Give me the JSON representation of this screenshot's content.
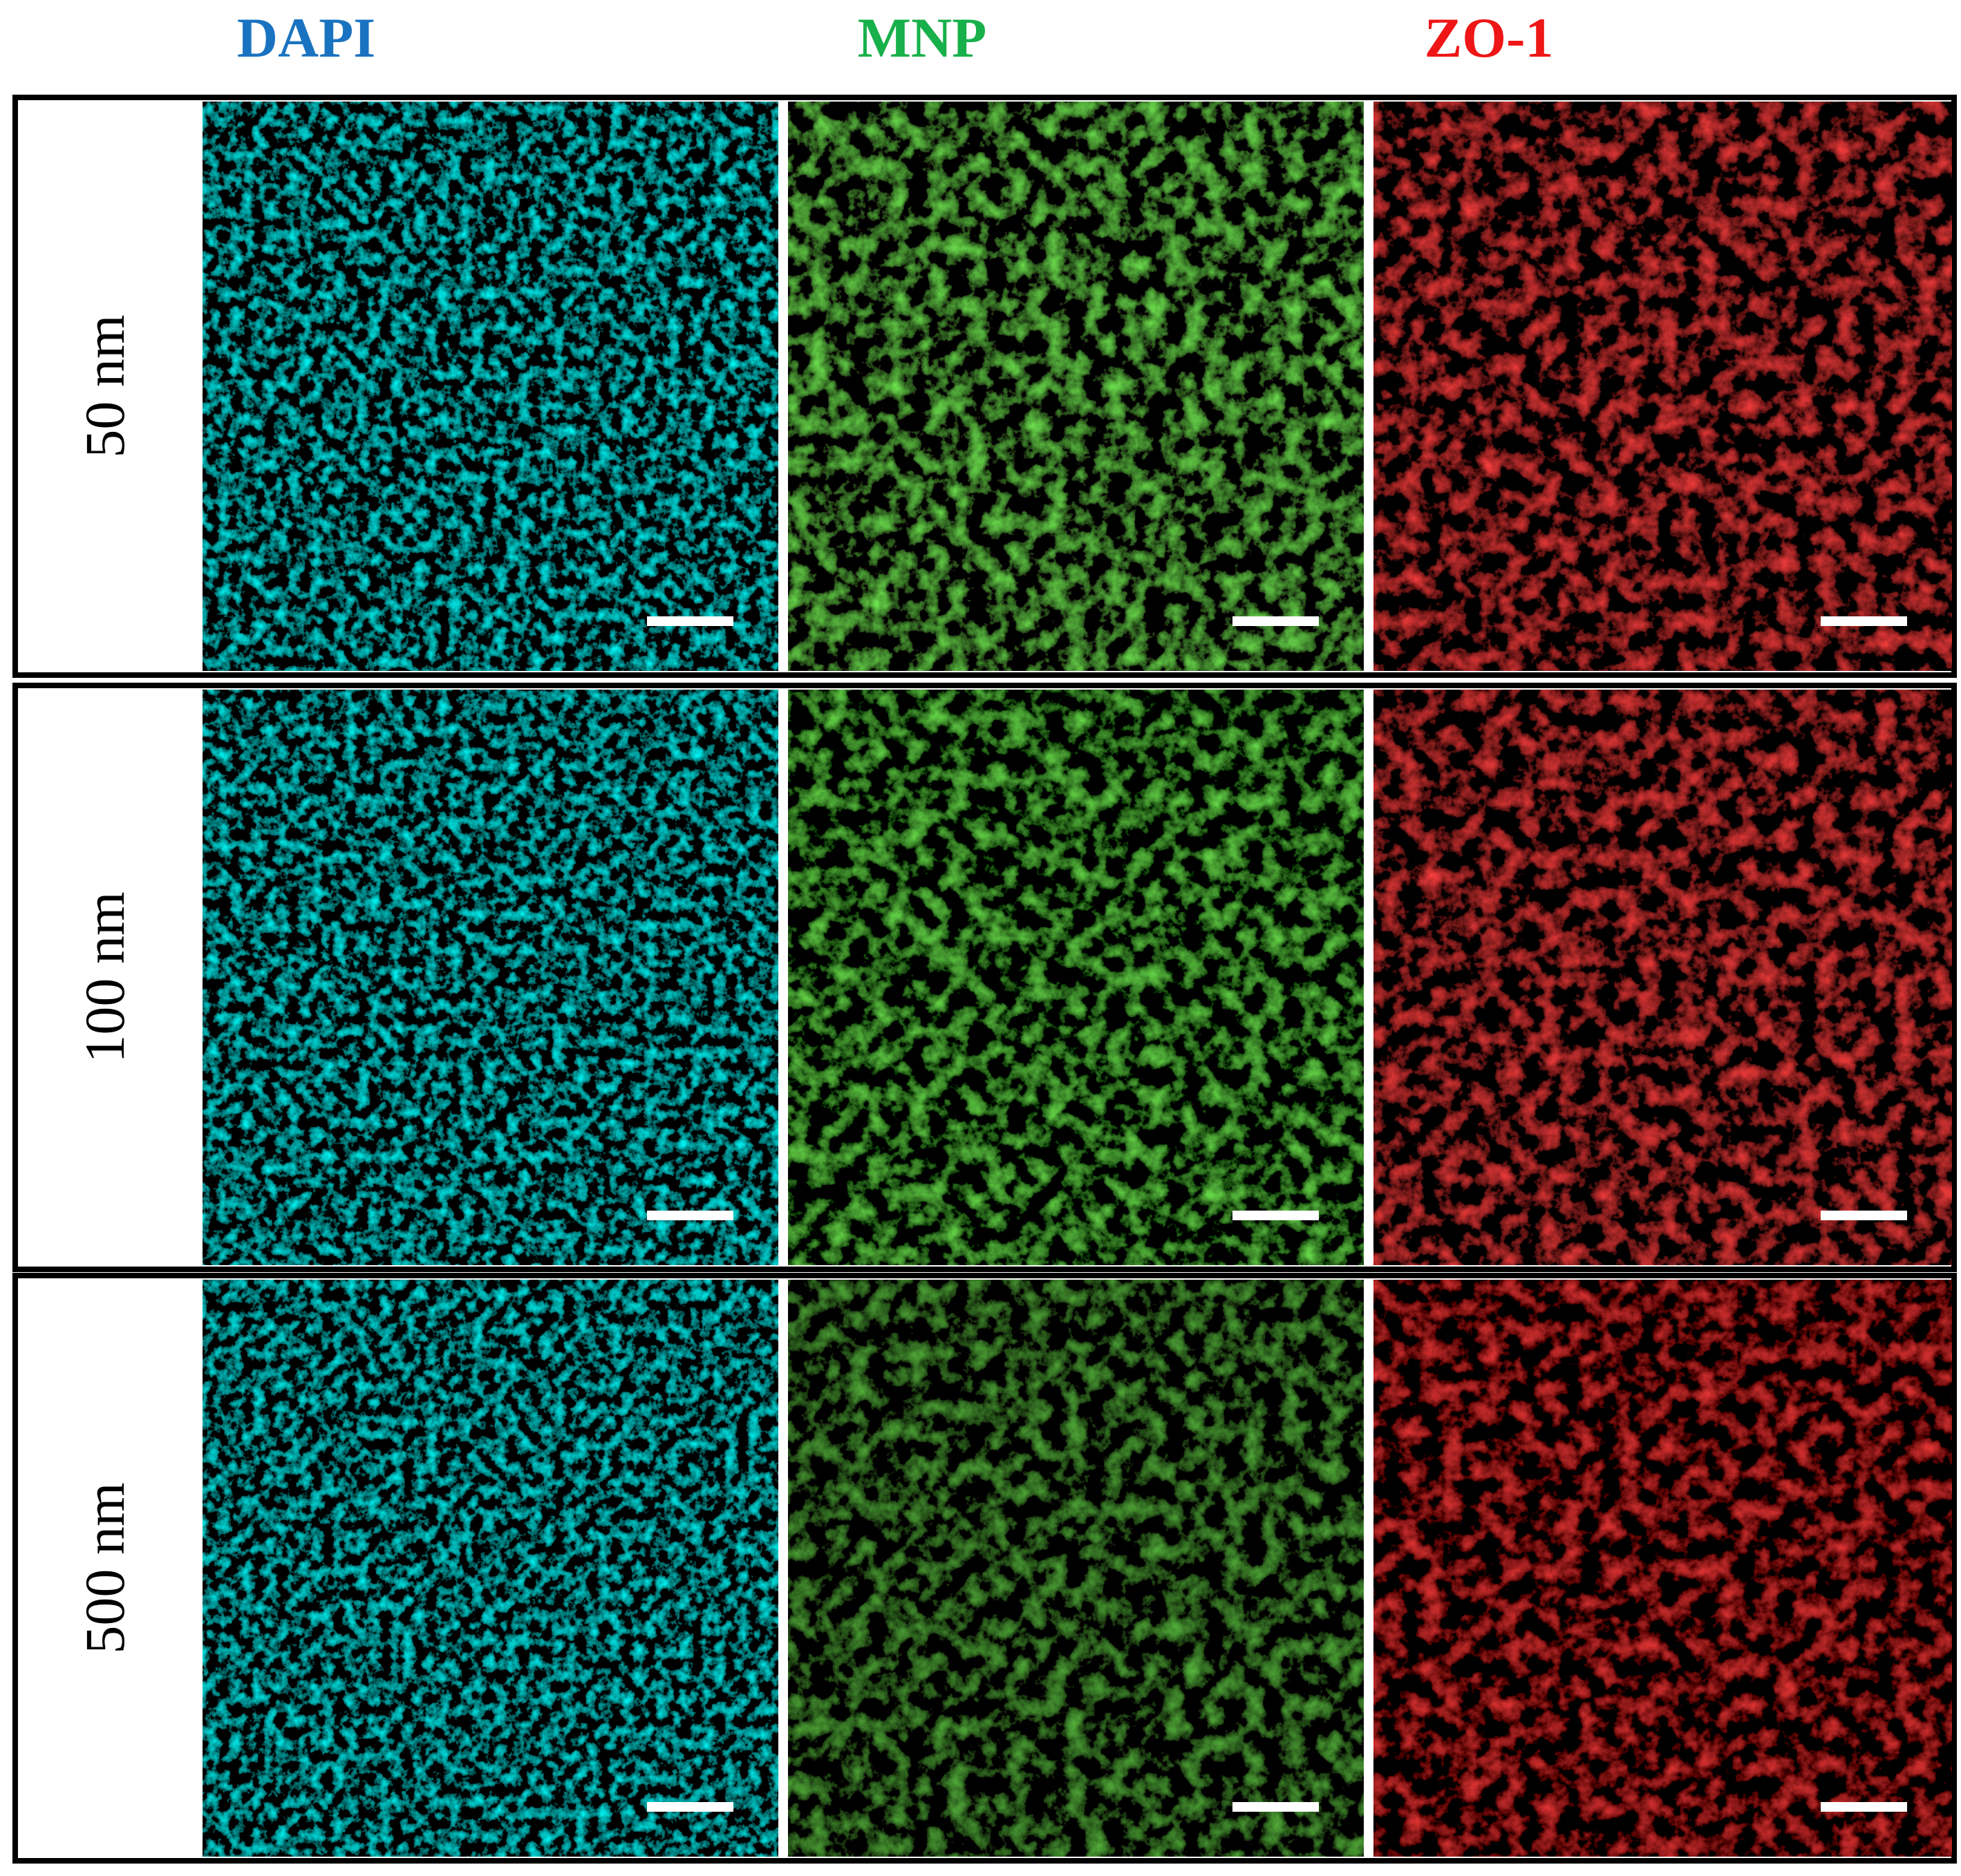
{
  "columns": [
    "DAPI",
    "MNP",
    "ZO-1"
  ],
  "rows": [
    "50 nm",
    "100 nm",
    "500 nm"
  ]
}
